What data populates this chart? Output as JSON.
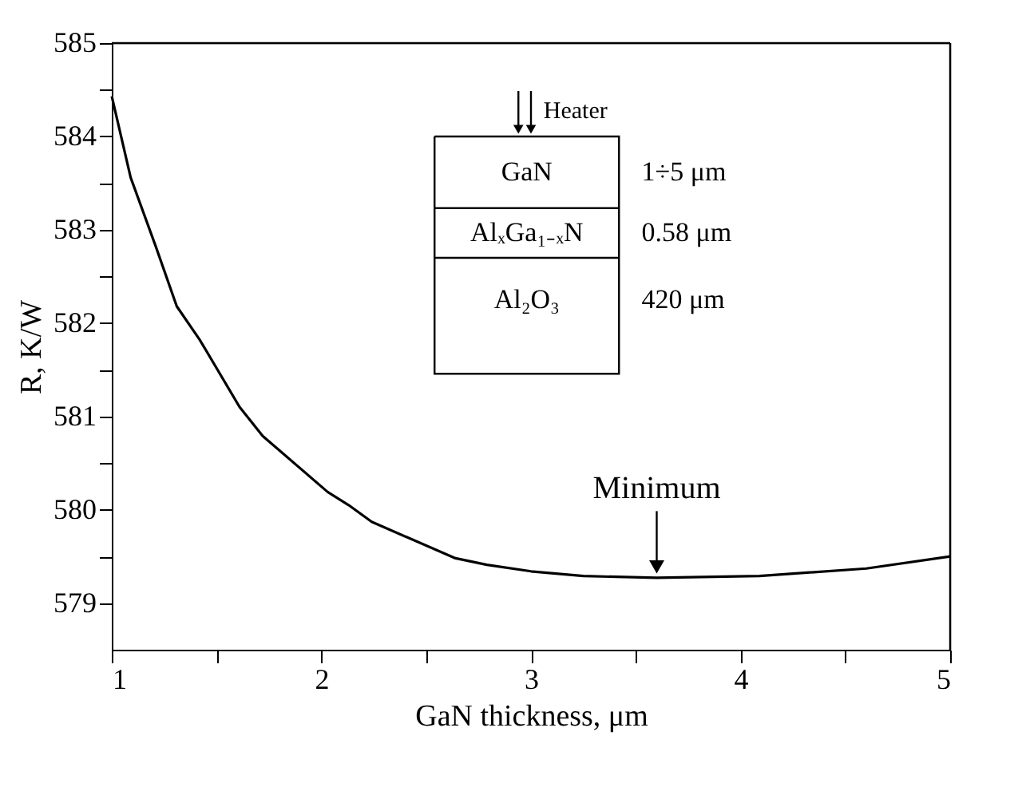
{
  "chart_data": {
    "type": "line",
    "xlabel": "GaN thickness, μm",
    "ylabel": "R, K/W",
    "x": [
      1,
      1.09,
      1.21,
      1.31,
      1.42,
      1.61,
      1.72,
      2.03,
      2.13,
      2.24,
      2.64,
      2.79,
      3.0,
      3.25,
      3.6,
      4.09,
      4.6,
      5
    ],
    "series": [
      {
        "color": "#000000",
        "values": [
          584.43,
          583.56,
          582.82,
          582.18,
          581.82,
          581.1,
          580.79,
          580.19,
          580.05,
          579.87,
          579.48,
          579.41,
          579.34,
          579.29,
          579.27,
          579.29,
          579.37,
          579.5
        ]
      }
    ],
    "xlim": [
      1,
      5
    ],
    "xticks": [
      1,
      {
        "value": 1.5,
        "label": null
      },
      2,
      {
        "value": 2.5,
        "label": null
      },
      3,
      {
        "value": 3.5,
        "label": null
      },
      4,
      {
        "value": 4.5,
        "label": null
      },
      5
    ],
    "ylim": [
      578.5,
      585
    ],
    "yticks": [
      579,
      {
        "value": 579.5,
        "label": null
      },
      580,
      {
        "value": 580.5,
        "label": null
      },
      581,
      {
        "value": 581.5,
        "label": null
      },
      582,
      {
        "value": 582.5,
        "label": null
      },
      583,
      {
        "value": 583.5,
        "label": null
      },
      584,
      {
        "value": 584.5,
        "label": null
      },
      585
    ],
    "grid": false,
    "marker": "none",
    "line_style": "solid",
    "annotations": [
      {
        "text": "Minimum",
        "x": 3.6,
        "y": 579.27
      },
      "Heater",
      "GaN",
      "1÷5 μm",
      "AlₓGa₁₋ₓN",
      "0.58 μm",
      "Al₂O₃",
      "420 μm"
    ]
  }
}
